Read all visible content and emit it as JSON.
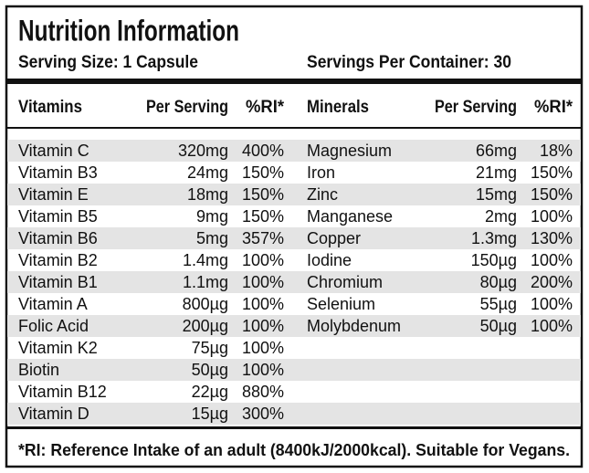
{
  "header": {
    "title": "Nutrition Information",
    "serving_size": "Serving Size: 1 Capsule",
    "servings_per_container": "Servings Per Container: 30"
  },
  "table": {
    "columns": [
      "Vitamins",
      "Per Serving",
      "%RI*",
      "Minerals",
      "Per Serving",
      "%RI*"
    ],
    "vitamins": [
      [
        "Vitamin C",
        "320mg",
        "400%"
      ],
      [
        "Vitamin B3",
        "24mg",
        "150%"
      ],
      [
        "Vitamin E",
        "18mg",
        "150%"
      ],
      [
        "Vitamin B5",
        "9mg",
        "150%"
      ],
      [
        "Vitamin B6",
        "5mg",
        "357%"
      ],
      [
        "Vitamin B2",
        "1.4mg",
        "100%"
      ],
      [
        "Vitamin B1",
        "1.1mg",
        "100%"
      ],
      [
        "Vitamin A",
        "800µg",
        "100%"
      ],
      [
        "Folic Acid",
        "200µg",
        "100%"
      ],
      [
        "Vitamin K2",
        "75µg",
        "100%"
      ],
      [
        "Biotin",
        "50µg",
        "100%"
      ],
      [
        "Vitamin B12",
        "22µg",
        "880%"
      ],
      [
        "Vitamin D",
        "15µg",
        "300%"
      ]
    ],
    "minerals": [
      [
        "Magnesium",
        "66mg",
        "18%"
      ],
      [
        "Iron",
        "21mg",
        "150%"
      ],
      [
        "Zinc",
        "15mg",
        "150%"
      ],
      [
        "Manganese",
        "2mg",
        "100%"
      ],
      [
        "Copper",
        "1.3mg",
        "130%"
      ],
      [
        "Iodine",
        "150µg",
        "100%"
      ],
      [
        "Chromium",
        "80µg",
        "200%"
      ],
      [
        "Selenium",
        "55µg",
        "100%"
      ],
      [
        "Molybdenum",
        "50µg",
        "100%"
      ]
    ]
  },
  "footnote": "*RI: Reference Intake of an adult (8400kJ/2000kcal). Suitable for Vegans."
}
